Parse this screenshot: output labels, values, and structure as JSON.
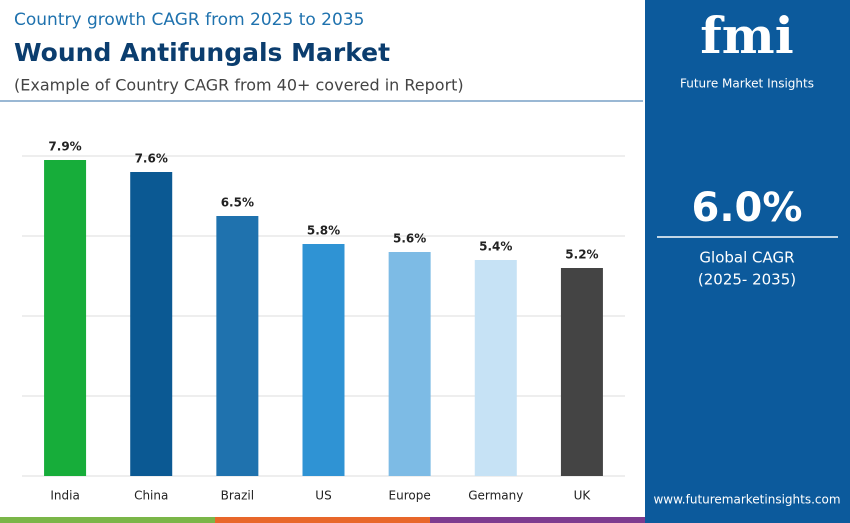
{
  "header": {
    "kicker": "Country growth CAGR from 2025 to 2035",
    "title": "Wound Antifungals Market",
    "note": "(Example of Country CAGR from 40+ covered in Report)"
  },
  "chart_data": {
    "type": "bar",
    "categories": [
      "India",
      "China",
      "Brazil",
      "US",
      "Europe",
      "Germany",
      "UK"
    ],
    "values": [
      7.9,
      7.6,
      6.5,
      5.8,
      5.6,
      5.4,
      5.2
    ],
    "value_labels": [
      "7.9%",
      "7.6%",
      "6.5%",
      "5.8%",
      "5.6%",
      "5.4%",
      "5.2%"
    ],
    "colors": [
      "#17ad3a",
      "#0b5993",
      "#1f72ae",
      "#2f93d4",
      "#7dbbe5",
      "#c6e2f5",
      "#444444"
    ],
    "ylim": [
      0,
      8
    ],
    "yticks": [
      0,
      2,
      4,
      6,
      8
    ],
    "grid": true
  },
  "sidebar": {
    "logo": "fmi",
    "brand": "Future Market Insights",
    "cagr_value": "6.0%",
    "cagr_label": "Global CAGR",
    "cagr_period": "(2025- 2035)",
    "website": "www.futuremarketinsights.com"
  }
}
